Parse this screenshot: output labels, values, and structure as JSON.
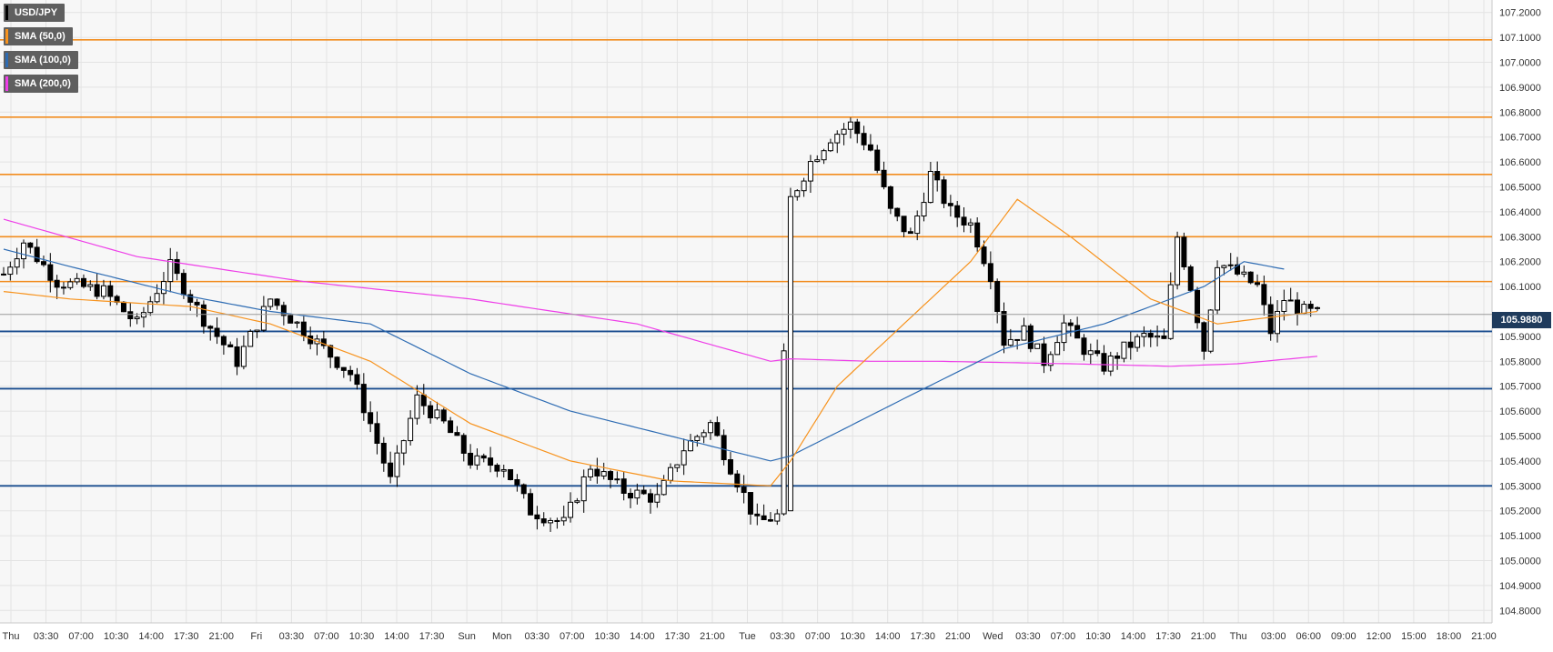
{
  "legend": {
    "instrument": "USD/JPY",
    "sma50": "SMA (50,0)",
    "sma100": "SMA (100,0)",
    "sma200": "SMA (200,0)"
  },
  "colors": {
    "background": "#f7f7f7",
    "grid": "#e3e3e3",
    "candle": "#000000",
    "sma50": "#f7931e",
    "sma100": "#2e6cb3",
    "sma200": "#ee3ee8",
    "resistance": "#f28c1e",
    "support": "#1a4d8f",
    "current_price_bg": "#1f3b5c"
  },
  "current_price": "105.9880",
  "chart_data": {
    "type": "candlestick",
    "title": "",
    "x_tick_labels": [
      "Thu",
      "03:30",
      "07:00",
      "10:30",
      "14:00",
      "17:30",
      "21:00",
      "Fri",
      "03:30",
      "07:00",
      "10:30",
      "14:00",
      "17:30",
      "Sun",
      "Mon",
      "03:30",
      "07:00",
      "10:30",
      "14:00",
      "17:30",
      "21:00",
      "Tue",
      "03:30",
      "07:00",
      "10:30",
      "14:00",
      "17:30",
      "21:00",
      "Wed",
      "03:30",
      "07:00",
      "10:30",
      "14:00",
      "17:30",
      "21:00",
      "Thu",
      "03:00",
      "06:00",
      "09:00",
      "12:00",
      "15:00",
      "18:00",
      "21:00"
    ],
    "y_tick_labels": [
      "107.2000",
      "107.1000",
      "107.0000",
      "106.9000",
      "106.8000",
      "106.7000",
      "106.6000",
      "106.5000",
      "106.4000",
      "106.3000",
      "106.2000",
      "106.1000",
      "105.9000",
      "105.8000",
      "105.7000",
      "105.6000",
      "105.5000",
      "105.4000",
      "105.3000",
      "105.2000",
      "105.1000",
      "105.0000",
      "104.9000",
      "104.8000"
    ],
    "ylim": [
      104.75,
      107.25
    ],
    "n_bars": 200,
    "resistance_levels": [
      107.09,
      106.78,
      106.55,
      106.3,
      106.12
    ],
    "support_levels": [
      105.92,
      105.69,
      105.3
    ],
    "close_series_anchors": [
      [
        0,
        106.15
      ],
      [
        3,
        106.28
      ],
      [
        8,
        106.12
      ],
      [
        15,
        106.08
      ],
      [
        20,
        105.95
      ],
      [
        25,
        106.18
      ],
      [
        30,
        105.97
      ],
      [
        35,
        105.8
      ],
      [
        40,
        106.05
      ],
      [
        46,
        105.9
      ],
      [
        52,
        105.75
      ],
      [
        55,
        105.55
      ],
      [
        58,
        105.32
      ],
      [
        62,
        105.65
      ],
      [
        66,
        105.55
      ],
      [
        70,
        105.4
      ],
      [
        75,
        105.38
      ],
      [
        79,
        105.2
      ],
      [
        84,
        105.15
      ],
      [
        88,
        105.38
      ],
      [
        93,
        105.28
      ],
      [
        98,
        105.25
      ],
      [
        102,
        105.45
      ],
      [
        106,
        105.55
      ],
      [
        110,
        105.32
      ],
      [
        113,
        105.15
      ],
      [
        116,
        105.18
      ],
      [
        118,
        106.45
      ],
      [
        121,
        106.6
      ],
      [
        124,
        106.7
      ],
      [
        127,
        106.75
      ],
      [
        130,
        106.65
      ],
      [
        133,
        106.4
      ],
      [
        136,
        106.3
      ],
      [
        139,
        106.55
      ],
      [
        142,
        106.4
      ],
      [
        145,
        106.35
      ],
      [
        148,
        106.15
      ],
      [
        150,
        105.88
      ],
      [
        153,
        105.92
      ],
      [
        156,
        105.8
      ],
      [
        159,
        105.95
      ],
      [
        162,
        105.85
      ],
      [
        165,
        105.78
      ],
      [
        168,
        105.85
      ],
      [
        171,
        105.9
      ],
      [
        174,
        105.88
      ],
      [
        176,
        106.3
      ],
      [
        178,
        106.1
      ],
      [
        180,
        105.85
      ],
      [
        182,
        106.2
      ],
      [
        185,
        106.15
      ],
      [
        188,
        106.1
      ],
      [
        190,
        105.92
      ],
      [
        192,
        106.05
      ],
      [
        195,
        106.0
      ],
      [
        197,
        105.99
      ]
    ],
    "sma50_anchors": [
      [
        0,
        106.08
      ],
      [
        10,
        106.05
      ],
      [
        28,
        106.02
      ],
      [
        40,
        105.95
      ],
      [
        55,
        105.8
      ],
      [
        70,
        105.55
      ],
      [
        85,
        105.4
      ],
      [
        100,
        105.32
      ],
      [
        115,
        105.3
      ],
      [
        118,
        105.4
      ],
      [
        125,
        105.7
      ],
      [
        135,
        105.95
      ],
      [
        145,
        106.2
      ],
      [
        152,
        106.45
      ],
      [
        160,
        106.3
      ],
      [
        172,
        106.05
      ],
      [
        182,
        105.95
      ],
      [
        197,
        106.0
      ]
    ],
    "sma100_anchors": [
      [
        0,
        106.25
      ],
      [
        10,
        106.18
      ],
      [
        28,
        106.06
      ],
      [
        40,
        106.0
      ],
      [
        55,
        105.95
      ],
      [
        70,
        105.75
      ],
      [
        85,
        105.6
      ],
      [
        100,
        105.5
      ],
      [
        115,
        105.4
      ],
      [
        118,
        105.42
      ],
      [
        135,
        105.65
      ],
      [
        150,
        105.85
      ],
      [
        165,
        105.95
      ],
      [
        180,
        106.1
      ],
      [
        186,
        106.2
      ],
      [
        192,
        106.17
      ]
    ],
    "sma200_anchors": [
      [
        0,
        106.37
      ],
      [
        20,
        106.22
      ],
      [
        45,
        106.12
      ],
      [
        70,
        106.05
      ],
      [
        95,
        105.95
      ],
      [
        115,
        105.8
      ],
      [
        118,
        105.81
      ],
      [
        130,
        105.8
      ],
      [
        140,
        105.8
      ],
      [
        160,
        105.79
      ],
      [
        175,
        105.78
      ],
      [
        185,
        105.79
      ],
      [
        197,
        105.82
      ]
    ]
  }
}
